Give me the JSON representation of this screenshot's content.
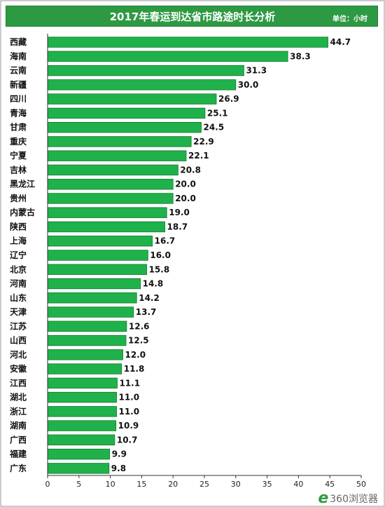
{
  "header": {
    "title": "2017年春运到达省市路途时长分析",
    "unit": "单位：小时"
  },
  "watermark": {
    "text": "360浏览器",
    "icon": "e-browser-logo-icon"
  },
  "colors": {
    "bar": "#1fb24a",
    "bar_edge": "#0f7a2e",
    "title_bg": "#2d9a43",
    "axis": "#333333"
  },
  "chart_data": {
    "type": "bar",
    "orientation": "horizontal",
    "title": "2017年春运到达省市路途时长分析",
    "xlabel": "",
    "ylabel": "",
    "unit": "单位：小时",
    "xlim": [
      0,
      50
    ],
    "xticks": [
      0,
      5,
      10,
      15,
      20,
      25,
      30,
      35,
      40,
      45,
      50
    ],
    "grid": false,
    "categories": [
      "西藏",
      "海南",
      "云南",
      "新疆",
      "四川",
      "青海",
      "甘肃",
      "重庆",
      "宁夏",
      "吉林",
      "黑龙江",
      "贵州",
      "内蒙古",
      "陕西",
      "上海",
      "辽宁",
      "北京",
      "河南",
      "山东",
      "天津",
      "江苏",
      "山西",
      "河北",
      "安徽",
      "江西",
      "湖北",
      "浙江",
      "湖南",
      "广西",
      "福建",
      "广东"
    ],
    "values": [
      44.7,
      38.3,
      31.3,
      30.0,
      26.9,
      25.1,
      24.5,
      22.9,
      22.1,
      20.8,
      20.0,
      20.0,
      19.0,
      18.7,
      16.7,
      16.0,
      15.8,
      14.8,
      14.2,
      13.7,
      12.6,
      12.5,
      12.0,
      11.8,
      11.1,
      11.0,
      11.0,
      10.9,
      10.7,
      9.9,
      9.8
    ],
    "value_labels": [
      "44.7",
      "38.3",
      "31.3",
      "30.0",
      "26.9",
      "25.1",
      "24.5",
      "22.9",
      "22.1",
      "20.8",
      "20.0",
      "20.0",
      "19.0",
      "18.7",
      "16.7",
      "16.0",
      "15.8",
      "14.8",
      "14.2",
      "13.7",
      "12.6",
      "12.5",
      "12.0",
      "11.8",
      "11.1",
      "11.0",
      "11.0",
      "10.9",
      "10.7",
      "9.9",
      "9.8"
    ]
  }
}
